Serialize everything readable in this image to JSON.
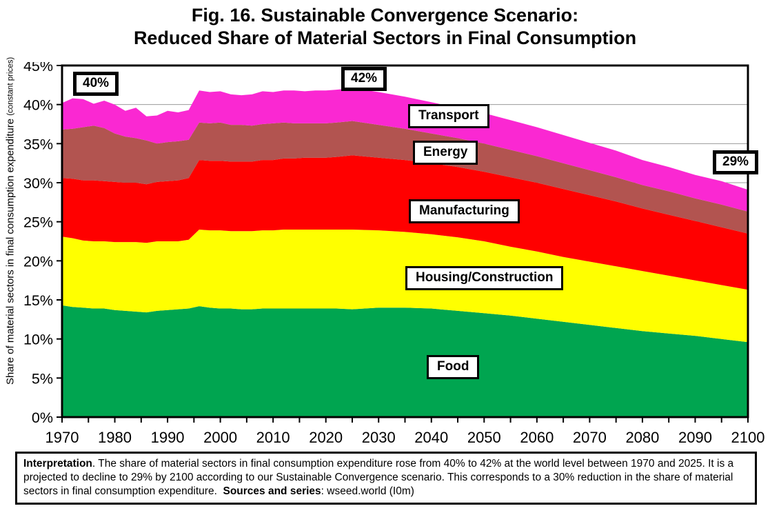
{
  "title": {
    "line1": "Fig. 16. Sustainable Convergence Scenario:",
    "line2": "Reduced Share of Material Sectors in Final Consumption"
  },
  "y_axis": {
    "label_main": "Share of material sectors in final consumption expenditure ",
    "label_small": "(constant prices)",
    "ticks": [
      "45%",
      "40%",
      "35%",
      "30%",
      "25%",
      "20%",
      "15%",
      "10%",
      "5%",
      "0%"
    ],
    "tick_step_pct": 5
  },
  "x_axis": {
    "ticks": [
      1970,
      1980,
      1990,
      2000,
      2010,
      2020,
      2030,
      2040,
      2050,
      2060,
      2070,
      2080,
      2090,
      2100
    ],
    "minor_step": 5
  },
  "chart_data": {
    "type": "area",
    "stacked": true,
    "unit": "percent of final consumption expenditure",
    "title": "Fig. 16. Sustainable Convergence Scenario: Reduced Share of Material Sectors in Final Consumption",
    "xlabel": "",
    "ylabel": "Share of material sectors in final consumption expenditure (constant prices)",
    "xlim": [
      1970,
      2100
    ],
    "ylim": [
      0,
      45
    ],
    "grid": true,
    "gridline_color": "#9a9a9a",
    "x": [
      1970,
      1972,
      1974,
      1976,
      1978,
      1980,
      1982,
      1984,
      1986,
      1988,
      1990,
      1992,
      1994,
      1996,
      1998,
      2000,
      2002,
      2004,
      2006,
      2008,
      2010,
      2012,
      2014,
      2016,
      2018,
      2020,
      2022,
      2025,
      2030,
      2035,
      2040,
      2045,
      2050,
      2055,
      2060,
      2065,
      2070,
      2075,
      2080,
      2085,
      2090,
      2095,
      2100
    ],
    "series": [
      {
        "name": "Food",
        "color": "#00A550",
        "values": [
          14.3,
          14.1,
          14.0,
          13.9,
          13.9,
          13.7,
          13.6,
          13.5,
          13.4,
          13.6,
          13.7,
          13.8,
          13.9,
          14.2,
          14.0,
          13.9,
          13.9,
          13.8,
          13.8,
          13.9,
          13.9,
          13.9,
          13.9,
          13.9,
          13.9,
          13.9,
          13.9,
          13.8,
          14.0,
          14.0,
          13.9,
          13.6,
          13.3,
          13.0,
          12.6,
          12.2,
          11.8,
          11.4,
          11.0,
          10.7,
          10.4,
          10.0,
          9.6
        ]
      },
      {
        "name": "Housing/Construction",
        "color": "#FFFF00",
        "values": [
          8.8,
          8.8,
          8.6,
          8.6,
          8.6,
          8.7,
          8.8,
          8.9,
          8.9,
          8.9,
          8.8,
          8.7,
          8.8,
          9.8,
          9.9,
          10.0,
          9.9,
          10.0,
          10.0,
          10.0,
          10.0,
          10.1,
          10.1,
          10.1,
          10.1,
          10.1,
          10.1,
          10.2,
          9.9,
          9.7,
          9.5,
          9.4,
          9.2,
          8.8,
          8.6,
          8.3,
          8.1,
          7.9,
          7.7,
          7.4,
          7.1,
          6.9,
          6.7
        ]
      },
      {
        "name": "Manufacturing",
        "color": "#FF0000",
        "values": [
          7.5,
          7.6,
          7.7,
          7.8,
          7.7,
          7.7,
          7.6,
          7.6,
          7.5,
          7.6,
          7.7,
          7.8,
          7.9,
          8.9,
          8.9,
          8.9,
          8.9,
          8.9,
          8.9,
          9.0,
          9.0,
          9.1,
          9.1,
          9.2,
          9.2,
          9.2,
          9.3,
          9.5,
          9.3,
          9.2,
          9.1,
          9.0,
          8.9,
          8.9,
          8.8,
          8.7,
          8.5,
          8.3,
          8.0,
          7.8,
          7.6,
          7.4,
          7.2
        ]
      },
      {
        "name": "Energy",
        "color": "#B25450",
        "values": [
          6.2,
          6.4,
          6.8,
          7.0,
          6.8,
          6.2,
          5.9,
          5.7,
          5.6,
          4.9,
          5.0,
          5.0,
          4.9,
          4.8,
          4.8,
          4.9,
          4.7,
          4.7,
          4.6,
          4.6,
          4.7,
          4.6,
          4.5,
          4.4,
          4.4,
          4.4,
          4.4,
          4.4,
          4.2,
          4.0,
          3.8,
          3.7,
          3.6,
          3.5,
          3.4,
          3.3,
          3.2,
          3.1,
          3.0,
          3.0,
          2.9,
          2.9,
          2.8
        ]
      },
      {
        "name": "Transport",
        "color": "#FA28D2",
        "values": [
          3.4,
          3.9,
          3.6,
          2.8,
          3.5,
          3.7,
          3.3,
          3.9,
          3.1,
          3.6,
          4.0,
          3.7,
          3.8,
          4.1,
          4.0,
          4.0,
          3.9,
          3.8,
          4.0,
          4.2,
          4.0,
          4.1,
          4.2,
          4.1,
          4.2,
          4.2,
          4.2,
          4.2,
          4.2,
          4.1,
          4.0,
          3.9,
          3.9,
          3.8,
          3.7,
          3.6,
          3.5,
          3.4,
          3.2,
          3.1,
          3.0,
          3.0,
          2.8
        ]
      }
    ],
    "annotations": [
      {
        "label": "40%",
        "year": 1970,
        "value": 40
      },
      {
        "label": "42%",
        "year": 2025,
        "value": 42
      },
      {
        "label": "29%",
        "year": 2100,
        "value": 29
      }
    ],
    "legend_position": "labels-inside-areas"
  },
  "caption": {
    "interpretation_label": "Interpretation",
    "body": ". The share of material sectors in final consumption expenditure rose from 40% to 42% at the world level between 1970 and 2025. It is a projected to decline to 29% by 2100 according to our Sustainable Convergence scenario. This corresponds to a 30% reduction in the share of material sectors in final consumption expenditure.  ",
    "sources_label": "Sources and series",
    "sources_rest": ": wseed.world (I0m)"
  }
}
